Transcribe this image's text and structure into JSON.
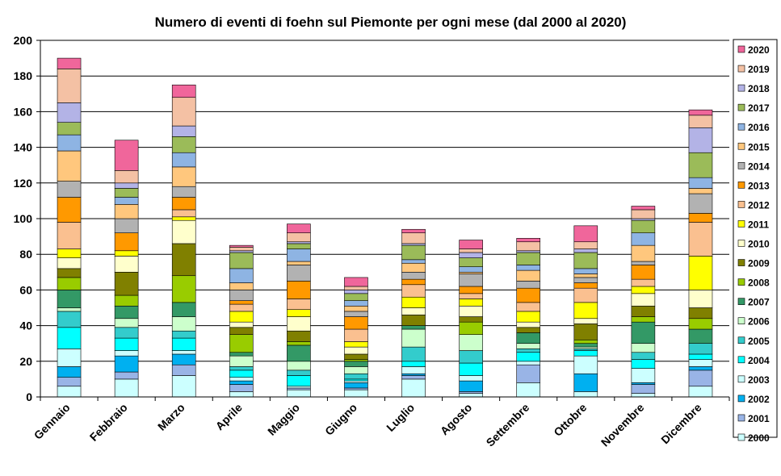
{
  "chart_data": {
    "type": "bar",
    "stacked": true,
    "title": "Numero di eventi di foehn sul Piemonte per ogni mese (dal 2000 al 2020)",
    "xlabel": "",
    "ylabel": "",
    "ylim": [
      0,
      200
    ],
    "yticks": [
      0,
      20,
      40,
      60,
      80,
      100,
      120,
      140,
      160,
      180,
      200
    ],
    "grid": true,
    "legend_position": "right",
    "categories": [
      "Gennaio",
      "Febbraio",
      "Marzo",
      "Aprile",
      "Maggio",
      "Giugno",
      "Luglio",
      "Agosto",
      "Settembre",
      "Ottobre",
      "Novembre",
      "Dicembre"
    ],
    "series": [
      {
        "name": "2000",
        "color": "#ccffff",
        "values": [
          6,
          10,
          12,
          3,
          4,
          4,
          10,
          2,
          8,
          3,
          2,
          6
        ]
      },
      {
        "name": "2001",
        "color": "#99b4e6",
        "values": [
          5,
          4,
          6,
          4,
          1,
          1,
          2,
          1,
          10,
          0,
          5,
          9
        ]
      },
      {
        "name": "2002",
        "color": "#00b0f0",
        "values": [
          6,
          9,
          6,
          2,
          0,
          3,
          1,
          6,
          0,
          10,
          1,
          2
        ]
      },
      {
        "name": "2003",
        "color": "#ccffff",
        "values": [
          10,
          3,
          2,
          2,
          1,
          1,
          4,
          3,
          2,
          10,
          8,
          4
        ]
      },
      {
        "name": "2004",
        "color": "#00ffff",
        "values": [
          12,
          7,
          7,
          4,
          6,
          1,
          3,
          7,
          5,
          3,
          5,
          3
        ]
      },
      {
        "name": "2005",
        "color": "#33cccc",
        "values": [
          9,
          6,
          4,
          2,
          3,
          3,
          8,
          7,
          2,
          1,
          4,
          6
        ]
      },
      {
        "name": "2006",
        "color": "#ccffcc",
        "values": [
          2,
          5,
          8,
          6,
          5,
          4,
          10,
          9,
          3,
          1,
          5,
          0
        ]
      },
      {
        "name": "2007",
        "color": "#339966",
        "values": [
          10,
          7,
          8,
          2,
          9,
          3,
          2,
          0,
          6,
          2,
          12,
          8
        ]
      },
      {
        "name": "2008",
        "color": "#99cc00",
        "values": [
          7,
          6,
          15,
          10,
          2,
          1,
          0,
          7,
          0,
          2,
          3,
          6
        ]
      },
      {
        "name": "2009",
        "color": "#808000",
        "values": [
          5,
          13,
          18,
          4,
          6,
          3,
          6,
          3,
          3,
          9,
          6,
          6
        ]
      },
      {
        "name": "2010",
        "color": "#ffffcc",
        "values": [
          6,
          9,
          13,
          3,
          8,
          4,
          4,
          6,
          3,
          3,
          7,
          10
        ]
      },
      {
        "name": "2011",
        "color": "#ffff00",
        "values": [
          5,
          3,
          2,
          6,
          4,
          3,
          6,
          4,
          6,
          9,
          4,
          19
        ]
      },
      {
        "name": "2012",
        "color": "#fac090",
        "values": [
          15,
          0,
          4,
          4,
          6,
          7,
          7,
          3,
          5,
          8,
          4,
          19
        ]
      },
      {
        "name": "2013",
        "color": "#ff9900",
        "values": [
          14,
          10,
          7,
          2,
          10,
          7,
          3,
          4,
          8,
          3,
          8,
          5
        ]
      },
      {
        "name": "2014",
        "color": "#b2b2b2",
        "values": [
          9,
          8,
          6,
          6,
          9,
          3,
          4,
          7,
          4,
          3,
          2,
          11
        ]
      },
      {
        "name": "2015",
        "color": "#ffc77d",
        "values": [
          17,
          8,
          11,
          4,
          2,
          3,
          5,
          1,
          6,
          2,
          9,
          3
        ]
      },
      {
        "name": "2016",
        "color": "#8eb4e3",
        "values": [
          9,
          4,
          8,
          8,
          7,
          3,
          2,
          3,
          3,
          3,
          7,
          6
        ]
      },
      {
        "name": "2017",
        "color": "#9bbb59",
        "values": [
          7,
          5,
          9,
          9,
          3,
          4,
          8,
          5,
          7,
          9,
          7,
          14
        ]
      },
      {
        "name": "2018",
        "color": "#b3b3e6",
        "values": [
          11,
          3,
          6,
          1,
          1,
          2,
          1,
          3,
          1,
          2,
          1,
          14
        ]
      },
      {
        "name": "2019",
        "color": "#f4c1a4",
        "values": [
          19,
          7,
          16,
          2,
          5,
          2,
          6,
          2,
          5,
          4,
          5,
          7
        ]
      },
      {
        "name": "2020",
        "color": "#f0669b",
        "values": [
          6,
          17,
          7,
          1,
          5,
          5,
          2,
          5,
          2,
          9,
          2,
          3
        ]
      }
    ]
  }
}
